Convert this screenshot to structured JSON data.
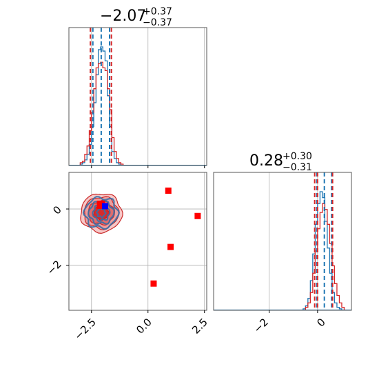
{
  "chart_data": [
    {
      "panel": "marginal-x",
      "type": "histogram",
      "title": {
        "main": "−2.07",
        "sup": "+0.37",
        "sub": "−0.37"
      },
      "xlim": [
        -3.5,
        2.6
      ],
      "xticks": [
        -2.5,
        0.0,
        2.5
      ],
      "show_tick_labels": false,
      "grid": true,
      "series": [
        {
          "color": "#1f77b4",
          "bins": [
            -3.1,
            -3.0,
            -2.9,
            -2.8,
            -2.7,
            -2.6,
            -2.5,
            -2.4,
            -2.3,
            -2.2,
            -2.1,
            -2.0,
            -1.9,
            -1.8,
            -1.7,
            -1.6,
            -1.5,
            -1.4,
            -1.3,
            -1.2,
            -1.1
          ],
          "counts": [
            0,
            1,
            2,
            4,
            8,
            15,
            28,
            45,
            65,
            83,
            85,
            82,
            75,
            50,
            28,
            10,
            5,
            2,
            1,
            0,
            0
          ],
          "lines": [
            -2.44,
            -2.07,
            -1.7
          ]
        },
        {
          "color": "#d62728",
          "bins": [
            -3.1,
            -3.0,
            -2.9,
            -2.8,
            -2.7,
            -2.6,
            -2.5,
            -2.4,
            -2.3,
            -2.2,
            -2.1,
            -2.0,
            -1.9,
            -1.8,
            -1.7,
            -1.6,
            -1.5,
            -1.4,
            -1.3,
            -1.2,
            -1.1
          ],
          "counts": [
            0,
            2,
            3,
            8,
            14,
            25,
            38,
            55,
            70,
            73,
            74,
            70,
            68,
            55,
            40,
            20,
            10,
            5,
            2,
            1,
            0
          ],
          "lines": [
            -2.55,
            -1.62
          ]
        }
      ]
    },
    {
      "panel": "joint",
      "type": "scatter",
      "xlim": [
        -3.5,
        2.6
      ],
      "ylim": [
        -3.6,
        1.3
      ],
      "xticks": [
        -2.5,
        0.0,
        2.5
      ],
      "xtick_labels": [
        "−2.5",
        "0.0",
        "2.5"
      ],
      "yticks": [
        -2,
        0
      ],
      "ytick_labels": [
        "−2",
        "0"
      ],
      "grid": true,
      "contour_center": [
        -2.07,
        0.28
      ],
      "red_points": [
        [
          0.9,
          0.65
        ],
        [
          2.2,
          -0.25
        ],
        [
          1.0,
          -1.35
        ],
        [
          0.25,
          -2.65
        ]
      ],
      "blue_point": [
        -1.9,
        0.1
      ],
      "red_center_point": [
        -2.05,
        0.15
      ]
    },
    {
      "panel": "marginal-y",
      "type": "histogram",
      "title": {
        "main": "0.28",
        "sup": "+0.30",
        "sub": "−0.31"
      },
      "xlim": [
        -4.3,
        1.4
      ],
      "xticks": [
        -2,
        0
      ],
      "xtick_labels": [
        "−2",
        "0"
      ],
      "grid": true,
      "series": [
        {
          "color": "#1f77b4",
          "bins": [
            -0.6,
            -0.5,
            -0.4,
            -0.3,
            -0.2,
            -0.1,
            0.0,
            0.1,
            0.2,
            0.3,
            0.4,
            0.5,
            0.6,
            0.7,
            0.8,
            0.9,
            1.0,
            1.1
          ],
          "counts": [
            1,
            3,
            8,
            20,
            38,
            58,
            72,
            80,
            76,
            60,
            42,
            25,
            12,
            5,
            2,
            1,
            0,
            0
          ],
          "lines": [
            -0.03,
            0.28,
            0.58
          ]
        },
        {
          "color": "#d62728",
          "bins": [
            -0.6,
            -0.5,
            -0.4,
            -0.3,
            -0.2,
            -0.1,
            0.0,
            0.1,
            0.2,
            0.3,
            0.4,
            0.5,
            0.6,
            0.7,
            0.8,
            0.9,
            1.0,
            1.1
          ],
          "counts": [
            0,
            2,
            5,
            12,
            25,
            40,
            55,
            66,
            72,
            68,
            58,
            45,
            30,
            18,
            10,
            5,
            2,
            0
          ],
          "lines": [
            -0.12,
            0.0,
            0.62
          ]
        }
      ]
    }
  ]
}
